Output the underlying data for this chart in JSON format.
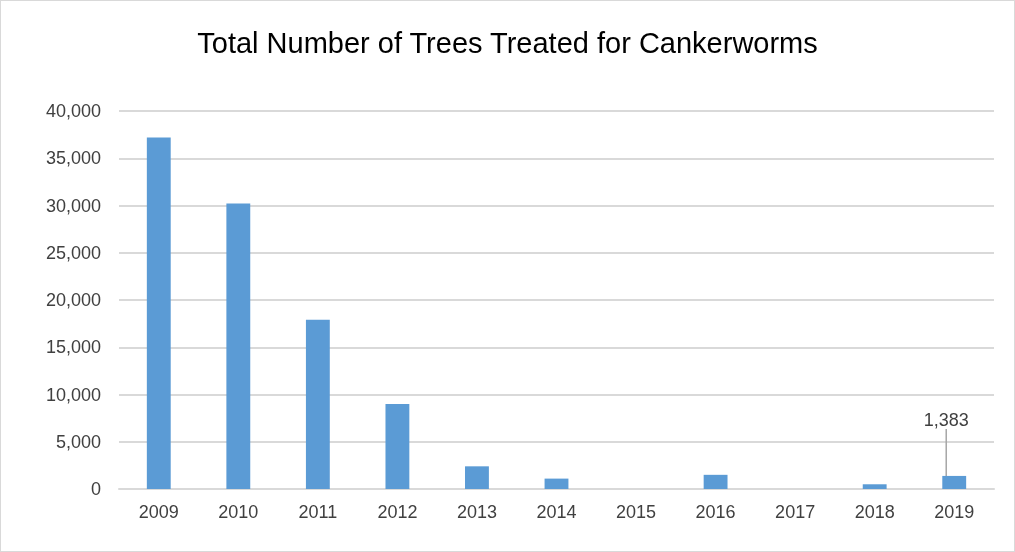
{
  "chart_data": {
    "type": "bar",
    "title": "Total Number of Trees Treated for Cankerworms",
    "categories": [
      "2009",
      "2010",
      "2011",
      "2012",
      "2013",
      "2014",
      "2015",
      "2016",
      "2017",
      "2018",
      "2019"
    ],
    "values": [
      37200,
      30200,
      17900,
      9000,
      2400,
      1100,
      0,
      1500,
      0,
      500,
      1383
    ],
    "value_labels": [
      null,
      null,
      null,
      null,
      null,
      null,
      null,
      null,
      null,
      null,
      "1,383"
    ],
    "color": "#5b9bd5",
    "ylim": [
      0,
      40000
    ],
    "yticks": [
      {
        "value": 0,
        "label": "0"
      },
      {
        "value": 5000,
        "label": "5,000"
      },
      {
        "value": 10000,
        "label": "10,000"
      },
      {
        "value": 15000,
        "label": "15,000"
      },
      {
        "value": 20000,
        "label": "20,000"
      },
      {
        "value": 25000,
        "label": "25,000"
      },
      {
        "value": 30000,
        "label": "30,000"
      },
      {
        "value": 35000,
        "label": "35,000"
      },
      {
        "value": 40000,
        "label": "40,000"
      }
    ],
    "grid": "y"
  }
}
